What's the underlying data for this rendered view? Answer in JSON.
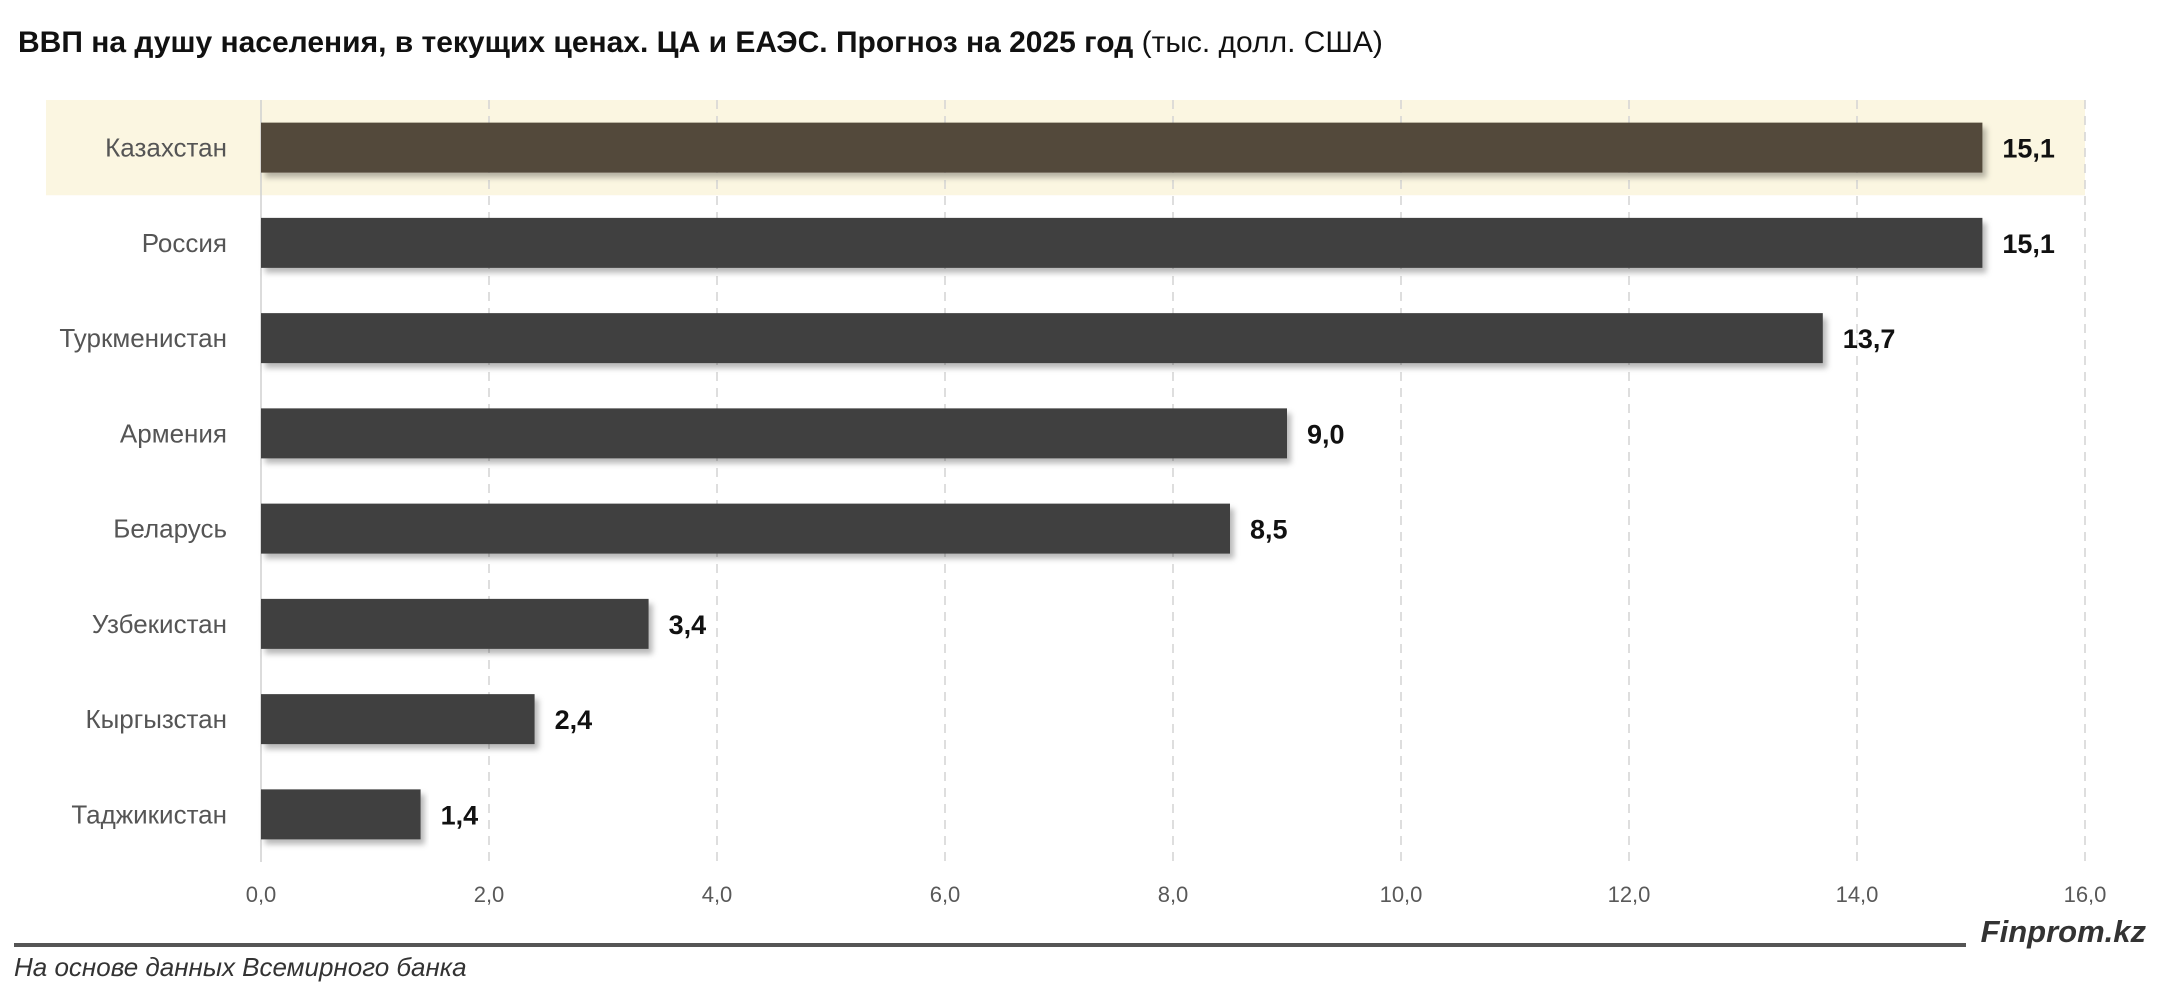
{
  "title": {
    "main": "ВВП на душу населения, в текущих ценах. ЦА и ЕАЭС. Прогноз на 2025 год",
    "unit": "(тыс. долл. США)"
  },
  "chart_data": {
    "type": "bar",
    "orientation": "horizontal",
    "categories": [
      "Казахстан",
      "Россия",
      "Туркменистан",
      "Армения",
      "Беларусь",
      "Узбекистан",
      "Кыргызстан",
      "Таджикистан"
    ],
    "values": [
      15.1,
      15.1,
      13.7,
      9.0,
      8.5,
      3.4,
      2.4,
      1.4
    ],
    "value_labels": [
      "15,1",
      "15,1",
      "13,7",
      "9,0",
      "8,5",
      "3,4",
      "2,4",
      "1,4"
    ],
    "xlim": [
      0,
      16
    ],
    "xticks": [
      "0,0",
      "2,0",
      "4,0",
      "6,0",
      "8,0",
      "10,0",
      "12,0",
      "14,0",
      "16,0"
    ],
    "grid": "vertical dashed",
    "highlight_index": 0,
    "colors": {
      "bar": "#404040",
      "highlight_bar": "#534a3a",
      "highlight_band": "#fbf6e1",
      "grid": "#d4d4d4"
    }
  },
  "footer": {
    "source": "На основе данных Всемирного банка",
    "brand": "Finprom.kz"
  }
}
